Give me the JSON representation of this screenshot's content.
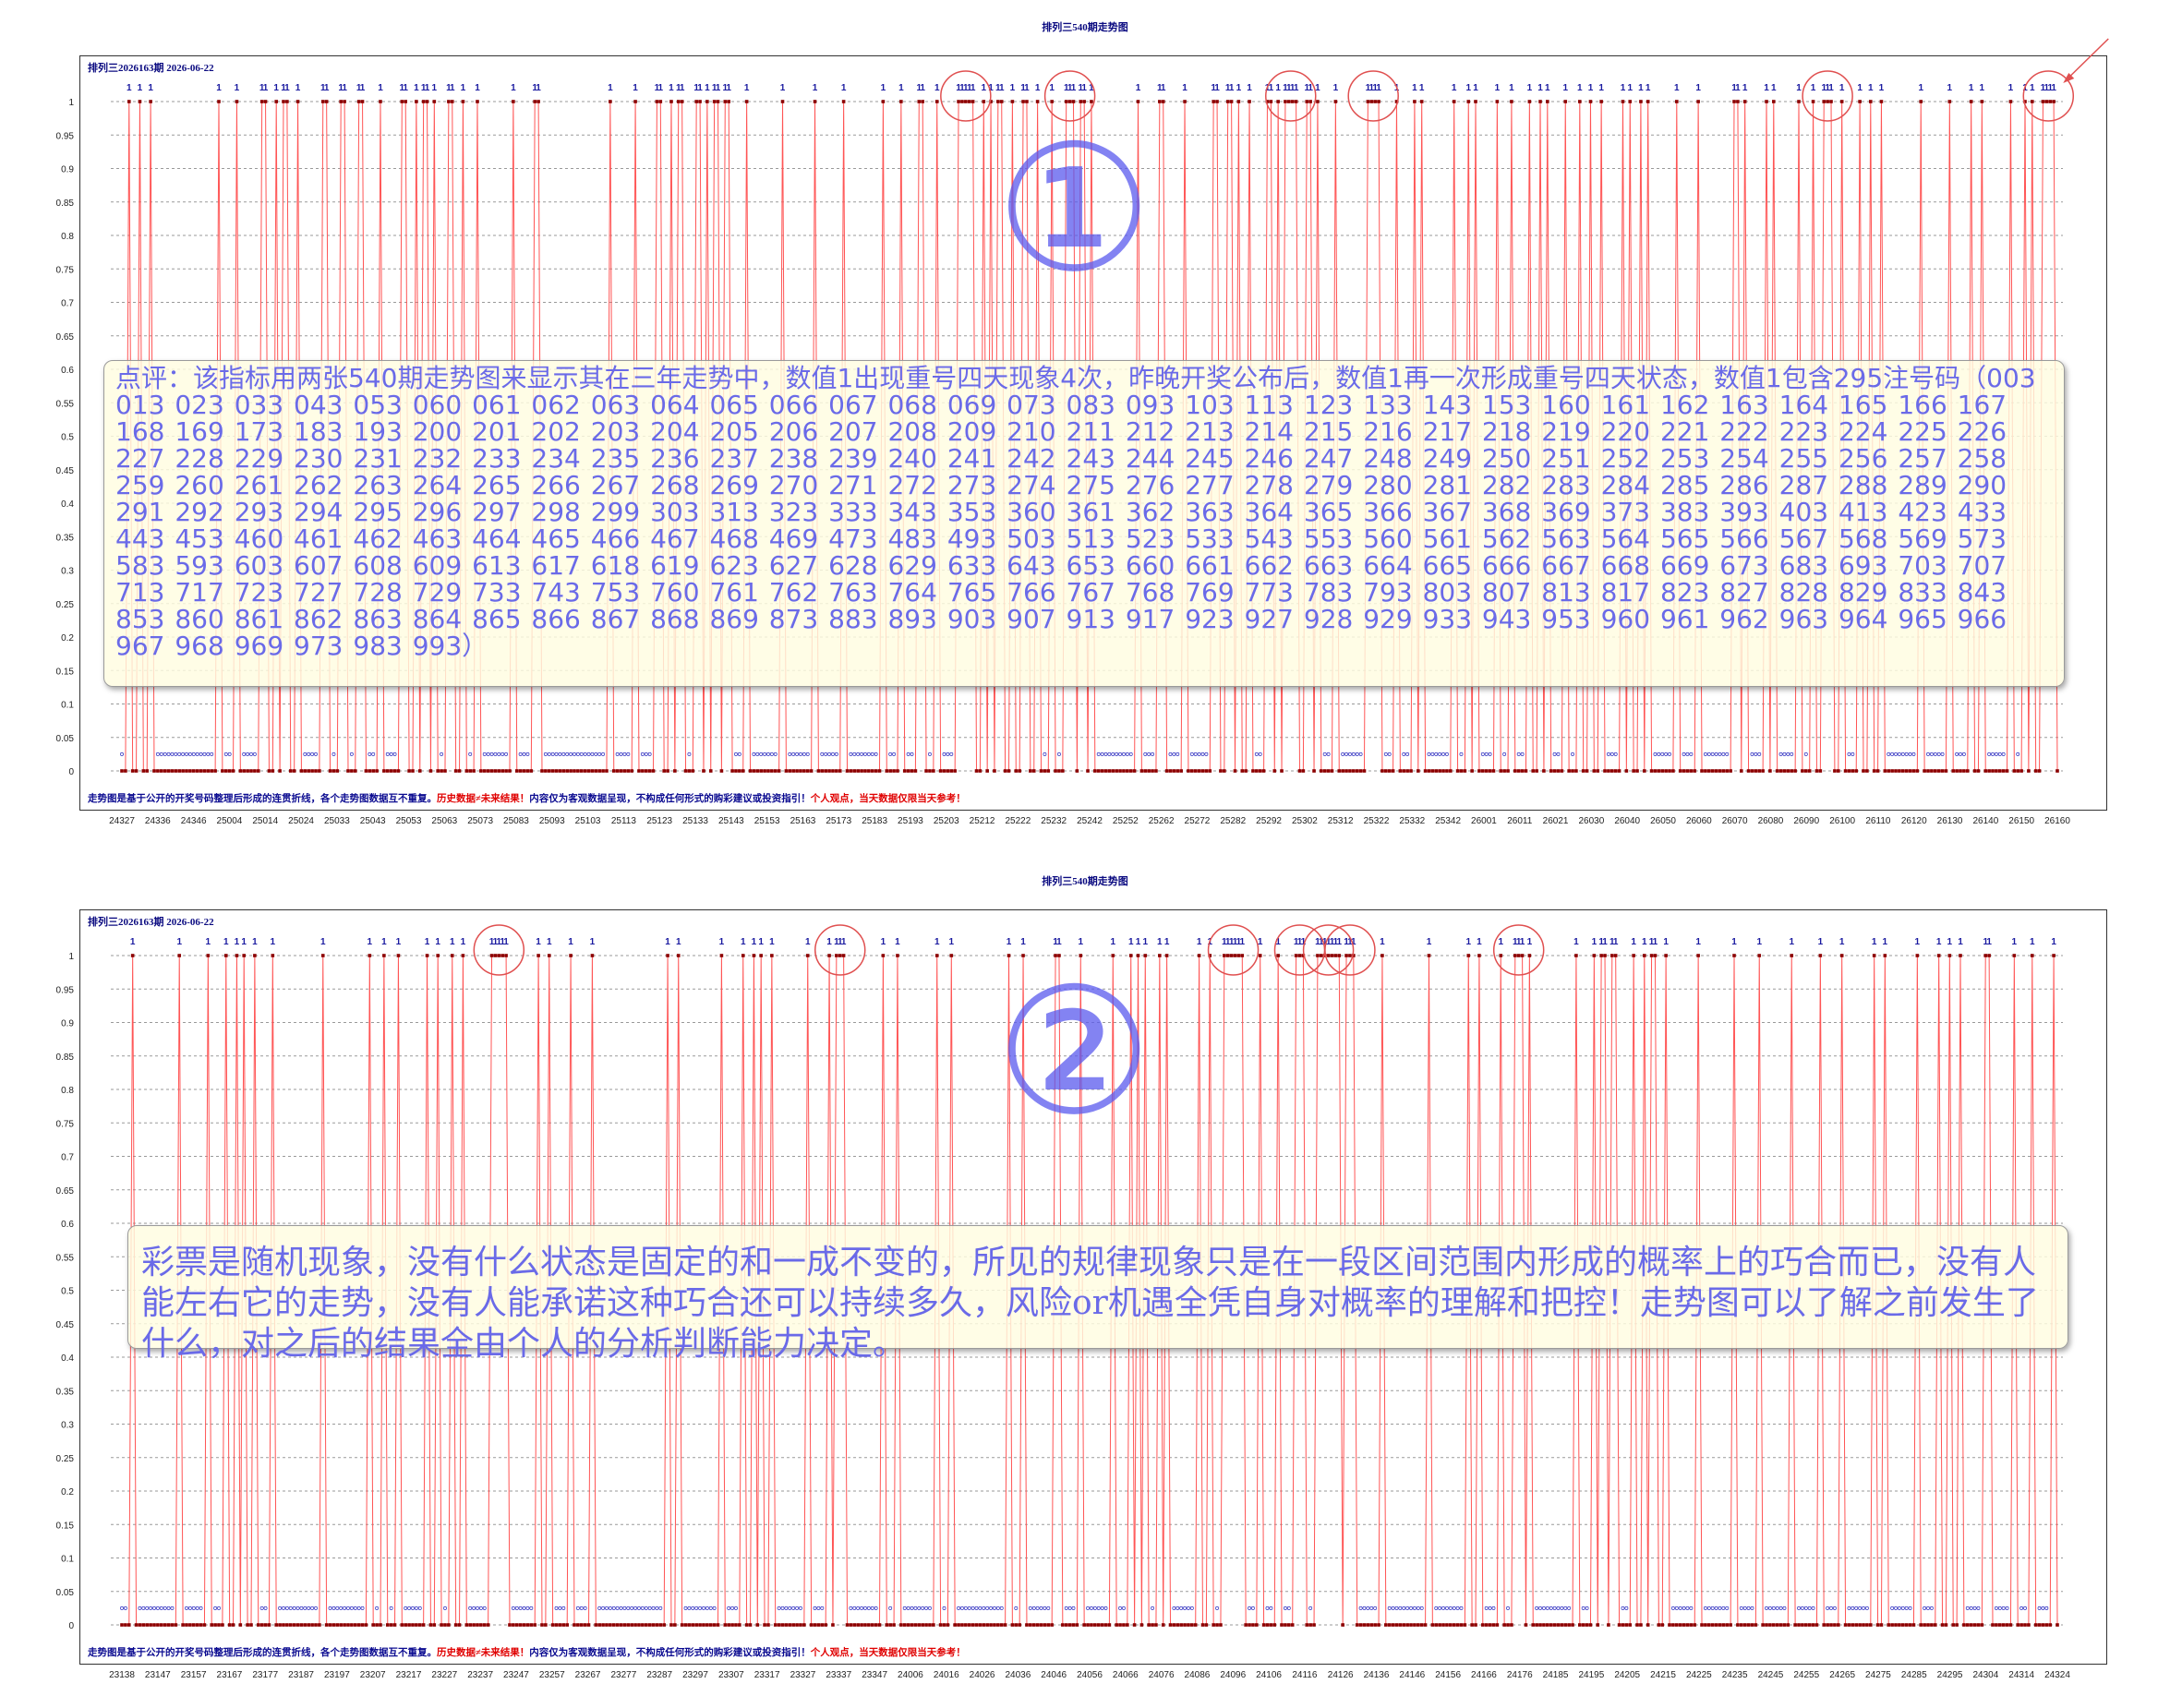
{
  "chart_data": [
    {
      "type": "line",
      "title": "排列三540期走势图",
      "subtitle": "排列三2026163期  2026-06-22",
      "ylim": [
        0,
        1
      ],
      "yticks": [
        "0",
        "0.05",
        "0.1",
        "0.15",
        "0.2",
        "0.25",
        "0.3",
        "0.35",
        "0.4",
        "0.45",
        "0.5",
        "0.55",
        "0.6",
        "0.65",
        "0.7",
        "0.75",
        "0.8",
        "0.85",
        "0.9",
        "0.95",
        "1"
      ],
      "x_tick_labels": [
        "24327",
        "24336",
        "24346",
        "25004",
        "25014",
        "25024",
        "25033",
        "25043",
        "25053",
        "25063",
        "25073",
        "25083",
        "25093",
        "25103",
        "25113",
        "25123",
        "25133",
        "25143",
        "25153",
        "25163",
        "25173",
        "25183",
        "25193",
        "25203",
        "25212",
        "25222",
        "25232",
        "25242",
        "25252",
        "25262",
        "25272",
        "25282",
        "25292",
        "25302",
        "25312",
        "25322",
        "25332",
        "25342",
        "26001",
        "26011",
        "26021",
        "26030",
        "26040",
        "26050",
        "26060",
        "26070",
        "26080",
        "26090",
        "26100",
        "26110",
        "26120",
        "26130",
        "26140",
        "26150",
        "26160"
      ],
      "series": [
        {
          "points_count": 540,
          "hits": [
            2,
            5,
            8,
            27,
            32,
            39,
            40,
            43,
            45,
            46,
            49,
            56,
            57,
            61,
            62,
            66,
            67,
            72,
            78,
            79,
            82,
            84,
            85,
            87,
            91,
            92,
            95,
            99,
            109,
            115,
            116,
            136,
            143,
            149,
            150,
            153,
            155,
            156,
            160,
            161,
            163,
            165,
            166,
            168,
            169,
            174,
            184,
            193,
            201,
            212,
            217,
            222,
            223,
            227,
            233,
            234,
            235,
            236,
            237,
            240,
            242,
            244,
            245,
            248,
            251,
            252,
            255,
            259,
            263,
            264,
            265,
            267,
            268,
            270,
            283,
            289,
            290,
            296,
            304,
            305,
            308,
            309,
            311,
            314,
            319,
            320,
            322,
            324,
            325,
            326,
            327,
            330,
            331,
            333,
            338,
            347,
            348,
            349,
            350,
            355,
            360,
            362,
            371,
            375,
            377,
            383,
            387,
            392,
            395,
            397,
            402,
            406,
            409,
            412,
            418,
            420,
            423,
            425,
            433,
            439,
            449,
            450,
            452,
            458,
            460,
            467,
            471,
            474,
            475,
            476,
            479,
            484,
            487,
            490,
            501,
            509,
            515,
            518,
            526,
            530,
            532,
            535,
            536,
            537,
            538
          ]
        }
      ],
      "annotation": {
        "badge": "①",
        "text": "点评：该指标用两张540期走势图来显示其在三年走势中，数值1出现重号四天现象4次，昨晚开奖公布后，数值1再一次形成重号四天状态，数值1包含295注号码（003 013 023 033 043 053 060 061 062 063 064 065 066 067 068 069 073 083 093 103 113 123 133 143 153 160 161 162 163 164 165 166 167 168 169 173 183 193 200 201 202 203 204 205 206 207 208 209 210 211 212 213 214 215 216 217 218 219 220 221 222 223 224 225 226 227 228 229 230 231 232 233 234 235 236 237 238 239 240 241 242 243 244 245 246 247 248 249 250 251 252 253 254 255 256 257 258 259 260 261 262 263 264 265 266 267 268 269 270 271 272 273 274 275 276 277 278 279 280 281 282 283 284 285 286 287 288 289 290 291 292 293 294 295 296 297 298 299 303 313 323 333 343 353 360 361 362 363 364 365 366 367 368 369 373 383 393 403 413 423 433 443 453 460 461 462 463 464 465 466 467 468 469 473 483 493 503 513 523 533 543 553 560 561 562 563 564 565 566 567 568 569 573 583 593 603 607 608 609 613 617 618 619 623 627 628 629 633 643 653 660 661 662 663 664 665 666 667 668 669 673 683 693 703 707 713 717 723 727 728 729 733 743 753 760 761 762 763 764 765 766 767 768 769 773 783 793 803 807 813 817 823 827 828 829 833 843 853 860 861 862 863 864 865 866 867 868 869 873 883 893 903 907 913 917 923 927 928 929 933 943 953 960 961 962 963 964 965 966 967 968 969 973 983 993）"
      },
      "footnote": {
        "blue": "走势图是基于公开的开奖号码整理后形成的连贯折线，各个走势图数据互不重复。",
        "red1": "历史数据≠未来结果！",
        "blue2": "内容仅为客观数据呈现，不构成任何形式的购彩建议或投资指引！",
        "red2": "个人观点，当天数据仅限当天参考！"
      },
      "colors": {
        "line": "#ff5555",
        "point_high": "#8b0000",
        "point_low": "#8b0000",
        "marker_ring": "#3030c0",
        "hit_label": "#1a1aa0",
        "circle": "#e05050"
      }
    },
    {
      "type": "line",
      "title": "排列三540期走势图",
      "subtitle": "排列三2026163期  2026-06-22",
      "ylim": [
        0,
        1
      ],
      "yticks": [
        "0",
        "0.05",
        "0.1",
        "0.15",
        "0.2",
        "0.25",
        "0.3",
        "0.35",
        "0.4",
        "0.45",
        "0.5",
        "0.55",
        "0.6",
        "0.65",
        "0.7",
        "0.75",
        "0.8",
        "0.85",
        "0.9",
        "0.95",
        "1"
      ],
      "x_tick_labels": [
        "23138",
        "23147",
        "23157",
        "23167",
        "23177",
        "23187",
        "23197",
        "23207",
        "23217",
        "23227",
        "23237",
        "23247",
        "23257",
        "23267",
        "23277",
        "23287",
        "23297",
        "23307",
        "23317",
        "23327",
        "23337",
        "23347",
        "24006",
        "24016",
        "24026",
        "24036",
        "24046",
        "24056",
        "24066",
        "24076",
        "24086",
        "24096",
        "24106",
        "24116",
        "24126",
        "24136",
        "24146",
        "24156",
        "24166",
        "24176",
        "24185",
        "24195",
        "24205",
        "24215",
        "24225",
        "24235",
        "24245",
        "24255",
        "24265",
        "24275",
        "24285",
        "24295",
        "24304",
        "24314",
        "24324"
      ],
      "series": [
        {
          "points_count": 540,
          "hits": [
            3,
            16,
            24,
            29,
            32,
            34,
            37,
            42,
            56,
            69,
            73,
            77,
            85,
            88,
            92,
            95,
            103,
            104,
            105,
            106,
            107,
            116,
            119,
            125,
            131,
            152,
            155,
            167,
            173,
            176,
            178,
            181,
            191,
            197,
            197,
            199,
            200,
            201,
            212,
            216,
            227,
            231,
            247,
            251,
            260,
            261,
            267,
            276,
            281,
            283,
            285,
            289,
            291,
            300,
            303,
            307,
            308,
            309,
            310,
            311,
            312,
            317,
            322,
            327,
            328,
            329,
            333,
            334,
            335,
            336,
            337,
            338,
            339,
            341,
            342,
            343,
            351,
            364,
            375,
            378,
            384,
            388,
            389,
            390,
            392,
            405,
            410,
            412,
            413,
            415,
            416,
            421,
            424,
            426,
            427,
            430,
            439,
            449,
            456,
            465,
            473,
            479,
            488,
            491,
            500,
            506,
            509,
            512,
            519,
            520,
            527,
            532,
            538
          ]
        }
      ],
      "annotation": {
        "badge": "②",
        "text": "彩票是随机现象，没有什么状态是固定的和一成不变的，所见的规律现象只是在一段区间范围内形成的概率上的巧合而已，没有人能左右它的走势，没有人能承诺这种巧合还可以持续多久，风险or机遇全凭自身对概率的理解和把控！走势图可以了解之前发生了什么，对之后的结果全由个人的分析判断能力决定。"
      },
      "footnote": {
        "blue": "走势图是基于公开的开奖号码整理后形成的连贯折线，各个走势图数据互不重复。",
        "red1": "历史数据≠未来结果！",
        "blue2": "内容仅为客观数据呈现，不构成任何形式的购彩建议或投资指引！",
        "red2": "个人观点，当天数据仅限当天参考！"
      },
      "colors": {
        "line": "#ff5555",
        "point_high": "#8b0000",
        "point_low": "#8b0000",
        "marker_ring": "#3030c0",
        "hit_label": "#1a1aa0",
        "circle": "#e05050"
      }
    }
  ],
  "hit_label_text": "1"
}
